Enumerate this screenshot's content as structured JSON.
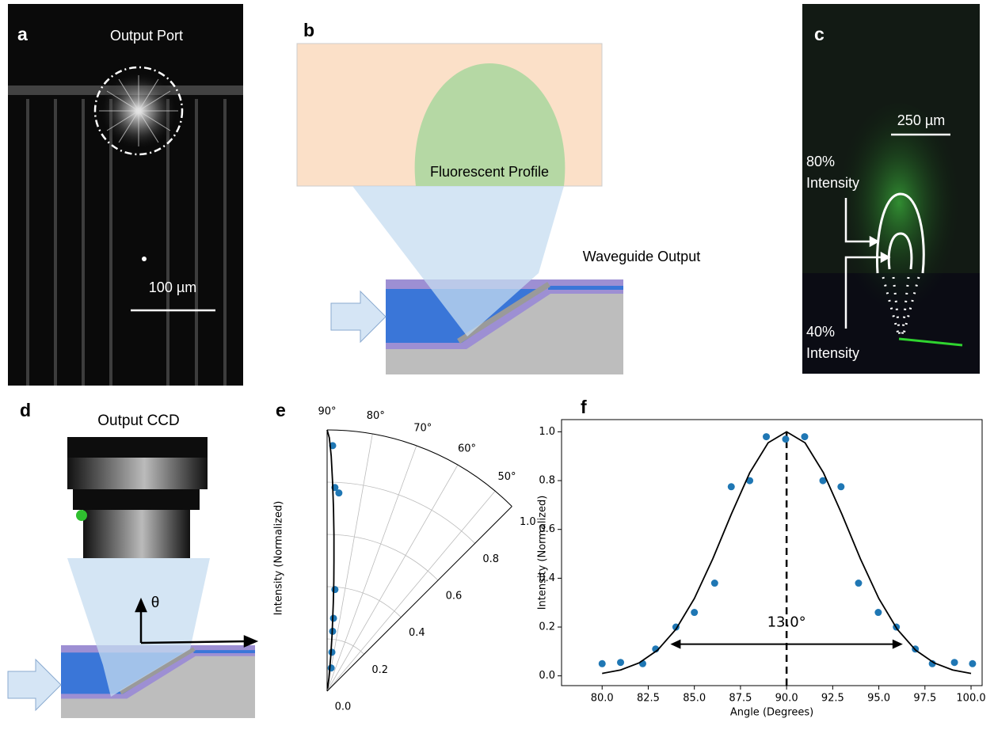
{
  "panels": {
    "a": {
      "label": "a",
      "title": "Output Port",
      "scale_bar": "100 µm"
    },
    "b": {
      "label": "b",
      "profile": "Fluorescent Profile",
      "output": "Waveguide Output"
    },
    "c": {
      "label": "c",
      "scale_bar": "250 µm",
      "upper": [
        "80%",
        "Intensity"
      ],
      "lower": [
        "40%",
        "Intensity"
      ]
    },
    "d": {
      "label": "d",
      "camera": "Output CCD",
      "angle": "θ"
    }
  },
  "chart_data": [
    {
      "type": "polar",
      "label": "e",
      "ylabel": "Intensity (Normalized)",
      "thetalim": [
        45,
        90
      ],
      "rlim": [
        0,
        1
      ],
      "grid": true,
      "thetaticks": [
        {
          "value": 50,
          "label": "50°"
        },
        {
          "value": 60,
          "label": "60°"
        },
        {
          "value": 70,
          "label": "70°"
        },
        {
          "value": 80,
          "label": "80°"
        },
        {
          "value": 90,
          "label": "90°"
        }
      ],
      "rticks": [
        {
          "value": 0,
          "label": "0.0"
        },
        {
          "value": 0.2,
          "label": "0.2"
        },
        {
          "value": 0.4,
          "label": "0.4"
        },
        {
          "value": 0.6,
          "label": "0.6"
        },
        {
          "value": 0.8,
          "label": "0.8"
        },
        {
          "value": 1.0,
          "label": "1.0"
        }
      ],
      "series": [
        {
          "kind": "scatter",
          "color": "#1f77b4",
          "theta": [
            88.7,
            87.8,
            86.6,
            85.6,
            85,
            84.7,
            83,
            80
          ],
          "values": [
            0.94,
            0.78,
            0.76,
            0.39,
            0.28,
            0.23,
            0.15,
            0.09
          ]
        },
        {
          "kind": "line",
          "color": "#000000",
          "theta": [
            90,
            89.5,
            89,
            88.5,
            88,
            87.5,
            87,
            86.5,
            86,
            85,
            84,
            82,
            80
          ],
          "values": [
            1.0,
            0.97,
            0.9,
            0.8,
            0.7,
            0.6,
            0.5,
            0.42,
            0.34,
            0.22,
            0.13,
            0.05,
            0.01
          ]
        }
      ]
    },
    {
      "type": "scatter",
      "label": "f",
      "xlabel": "Angle (Degrees)",
      "ylabel": "Intensity (Normalized)",
      "xlim": [
        77.8,
        100.6
      ],
      "ylim": [
        -0.04,
        1.05
      ],
      "xticks": [
        {
          "value": 80,
          "label": "80.0"
        },
        {
          "value": 82.5,
          "label": "82.5"
        },
        {
          "value": 85,
          "label": "85.0"
        },
        {
          "value": 87.5,
          "label": "87.5"
        },
        {
          "value": 90,
          "label": "90.0"
        },
        {
          "value": 92.5,
          "label": "92.5"
        },
        {
          "value": 95,
          "label": "95.0"
        },
        {
          "value": 97.5,
          "label": "97.5"
        },
        {
          "value": 100,
          "label": "100.0"
        }
      ],
      "yticks": [
        {
          "value": 0,
          "label": "0.0"
        },
        {
          "value": 0.2,
          "label": "0.2"
        },
        {
          "value": 0.4,
          "label": "0.4"
        },
        {
          "value": 0.6,
          "label": "0.6"
        },
        {
          "value": 0.8,
          "label": "0.8"
        },
        {
          "value": 1.0,
          "label": "1.0"
        }
      ],
      "series": [
        {
          "kind": "scatter",
          "color": "#1f77b4",
          "x": [
            80,
            81,
            82.2,
            82.9,
            84,
            85,
            86.1,
            87,
            88,
            88.9,
            89.95,
            90.98,
            91.97,
            92.95,
            93.9,
            94.97,
            95.95,
            96.98,
            97.9,
            99.1,
            100.08
          ],
          "values": [
            0.05,
            0.055,
            0.05,
            0.11,
            0.2,
            0.26,
            0.38,
            0.775,
            0.8,
            0.98,
            0.97,
            0.98,
            0.8,
            0.775,
            0.38,
            0.26,
            0.2,
            0.11,
            0.05,
            0.055,
            0.05
          ]
        },
        {
          "kind": "line",
          "color": "#000000",
          "x": [
            80,
            81,
            82,
            83,
            84,
            85,
            86,
            87,
            88,
            89,
            90,
            91,
            92,
            93,
            94,
            95,
            96,
            97,
            98,
            99,
            100
          ],
          "values": [
            0.01,
            0.024,
            0.053,
            0.105,
            0.191,
            0.317,
            0.48,
            0.662,
            0.832,
            0.955,
            1.0,
            0.955,
            0.832,
            0.662,
            0.48,
            0.317,
            0.191,
            0.105,
            0.053,
            0.024,
            0.01
          ]
        }
      ],
      "vline": {
        "x": 90,
        "ymax": 1.0
      },
      "annotation": {
        "text": "13.0°",
        "x": [
          83.7,
          96.3
        ],
        "y": 0.13
      }
    }
  ]
}
